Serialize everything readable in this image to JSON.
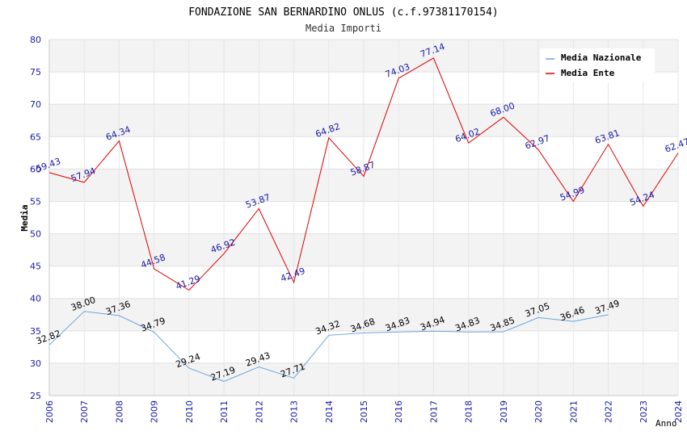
{
  "chart_data": {
    "type": "line",
    "title": "FONDAZIONE SAN BERNARDINO ONLUS (c.f.97381170154)",
    "subtitle": "Media Importi",
    "xlabel": "Anno",
    "ylabel": "Media",
    "ylim": [
      25,
      80
    ],
    "yticks": [
      25,
      30,
      35,
      40,
      45,
      50,
      55,
      60,
      65,
      70,
      75,
      80
    ],
    "x": [
      2006,
      2007,
      2008,
      2009,
      2010,
      2011,
      2012,
      2013,
      2014,
      2015,
      2016,
      2017,
      2018,
      2019,
      2020,
      2021,
      2022,
      2023,
      2024
    ],
    "grid": "horizontal bands",
    "legend_position": "top-right",
    "series": [
      {
        "name": "Media Nazionale",
        "color": "#6aa5e0",
        "x": [
          2006,
          2007,
          2008,
          2009,
          2010,
          2011,
          2012,
          2013,
          2014,
          2015,
          2016,
          2017,
          2018,
          2019,
          2020,
          2021,
          2022
        ],
        "values": [
          32.82,
          38.0,
          37.36,
          34.79,
          29.24,
          27.19,
          29.43,
          27.71,
          34.32,
          34.68,
          34.83,
          34.94,
          34.83,
          34.85,
          37.05,
          36.46,
          37.49
        ],
        "labels": [
          "32.82",
          "38.00",
          "37.36",
          "34.79",
          "29.24",
          "27.19",
          "29.43",
          "27.71",
          "34.32",
          "34.68",
          "34.83",
          "34.94",
          "34.83",
          "34.85",
          "37.05",
          "36.46",
          "37.49"
        ]
      },
      {
        "name": "Media Ente",
        "color": "#e00000",
        "x": [
          2006,
          2007,
          2008,
          2009,
          2010,
          2011,
          2012,
          2013,
          2014,
          2015,
          2016,
          2017,
          2018,
          2019,
          2020,
          2021,
          2022,
          2023,
          2024
        ],
        "values": [
          59.43,
          57.94,
          64.34,
          44.58,
          41.29,
          46.92,
          53.87,
          42.49,
          64.82,
          58.87,
          74.03,
          77.14,
          64.02,
          68.0,
          62.97,
          54.99,
          63.81,
          54.24,
          62.47
        ],
        "labels": [
          "59.43",
          "57.94",
          "64.34",
          "44.58",
          "41.29",
          "46.92",
          "53.87",
          "42.49",
          "64.82",
          "58.87",
          "74.03",
          "77.14",
          "64.02",
          "68.00",
          "62.97",
          "54.99",
          "63.81",
          "54.24",
          "62.47"
        ]
      }
    ]
  }
}
